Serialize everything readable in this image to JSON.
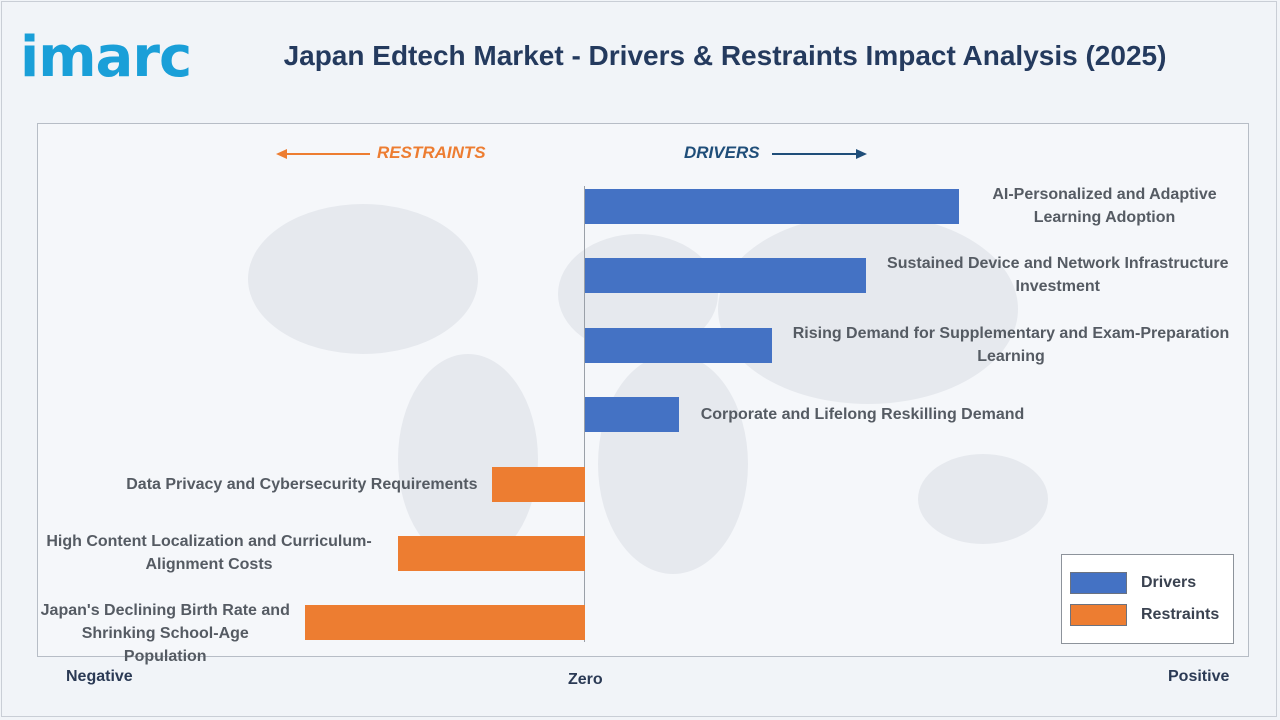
{
  "brand": {
    "logo_text": "imarc"
  },
  "title": "Japan Edtech Market - Drivers & Restraints Impact Analysis (2025)",
  "direction_labels": {
    "restraints": "RESTRAINTS",
    "drivers": "DRIVERS"
  },
  "axis_captions": {
    "negative": "Negative",
    "zero": "Zero",
    "positive": "Positive"
  },
  "colors": {
    "drivers": "#4472c4",
    "restraints": "#ed7d31",
    "title": "#243a5e",
    "drivers_arrow": "#1f4e79"
  },
  "legend": {
    "drivers": "Drivers",
    "restraints": "Restraints"
  },
  "chart_data": {
    "type": "bar",
    "orientation": "horizontal",
    "title": "Japan Edtech Market - Drivers & Restraints Impact Analysis (2025)",
    "xlabel": "",
    "ylabel": "",
    "axis_labels": [
      "Negative",
      "Zero",
      "Positive"
    ],
    "legend_position": "bottom-right",
    "grid": false,
    "series": [
      {
        "name": "Drivers",
        "items": [
          {
            "label": "AI-Personalized and Adaptive Learning Adoption",
            "value": 4
          },
          {
            "label": "Sustained Device and Network Infrastructure Investment",
            "value": 3
          },
          {
            "label": "Rising Demand for Supplementary and Exam-Preparation Learning",
            "value": 2
          },
          {
            "label": "Corporate and Lifelong Reskilling Demand",
            "value": 1
          }
        ]
      },
      {
        "name": "Restraints",
        "items": [
          {
            "label": "Data Privacy and Cybersecurity Requirements",
            "value": -1
          },
          {
            "label": "High Content Localization and Curriculum-Alignment Costs",
            "value": -2
          },
          {
            "label": "Japan's Declining Birth Rate and Shrinking School-Age Population",
            "value": -3
          }
        ]
      }
    ]
  }
}
